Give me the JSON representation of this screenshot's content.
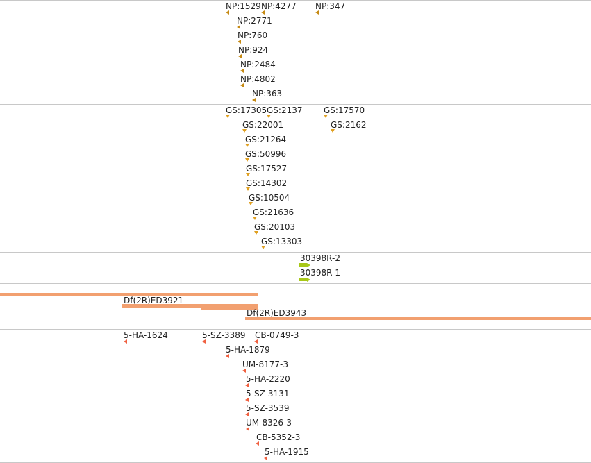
{
  "colors": {
    "np_marker": "#c68a14",
    "gs_marker": "#e0a020",
    "gene": "#a8c818",
    "deficiency": "#f2a070",
    "insertion_marker": "#f06040",
    "divider": "#c8c8c8"
  },
  "np_track": {
    "items": [
      "NP:1529",
      "NP:4277",
      "NP:347",
      "NP:2771",
      "NP:760",
      "NP:924",
      "NP:2484",
      "NP:4802",
      "NP:363"
    ]
  },
  "gs_track": {
    "items": [
      "GS:17305",
      "GS:2137",
      "GS:17570",
      "GS:22001",
      "GS:2162",
      "GS:21264",
      "GS:50996",
      "GS:17527",
      "GS:14302",
      "GS:10504",
      "GS:21636",
      "GS:20103",
      "GS:13303"
    ]
  },
  "gene_track": {
    "items": [
      "30398R-2",
      "30398R-1"
    ]
  },
  "deficiency_track": {
    "items": [
      "Df(2R)ED3921",
      "Df(2R)ED3943"
    ]
  },
  "insertion_track": {
    "items": [
      "5-HA-1624",
      "5-SZ-3389",
      "CB-0749-3",
      "5-HA-1879",
      "UM-8177-3",
      "5-HA-2220",
      "5-SZ-3131",
      "5-SZ-3539",
      "UM-8326-3",
      "CB-5352-3",
      "5-HA-1915"
    ]
  }
}
